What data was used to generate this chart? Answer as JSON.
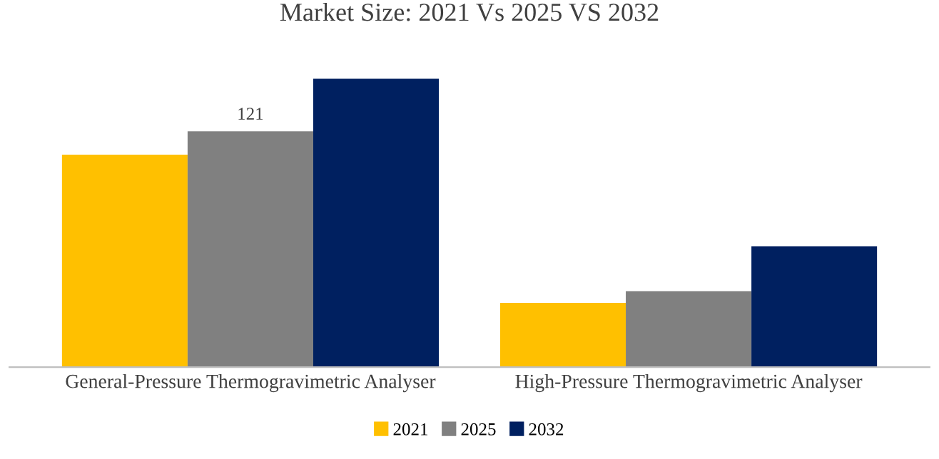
{
  "chart_data": {
    "type": "bar",
    "title": "Market Size: 2021 Vs 2025 VS 2032",
    "categories": [
      "General-Pressure Thermogravimetric Analyser",
      "High-Pressure Thermogravimetric Analyser"
    ],
    "series": [
      {
        "name": "2021",
        "color": "#ffc000",
        "values": [
          109,
          33
        ]
      },
      {
        "name": "2025",
        "color": "#808080",
        "values": [
          121,
          39
        ],
        "value_labels": [
          "121",
          null
        ]
      },
      {
        "name": "2032",
        "color": "#002060",
        "values": [
          148,
          62
        ]
      }
    ],
    "grid": false,
    "legend": "bottom"
  }
}
